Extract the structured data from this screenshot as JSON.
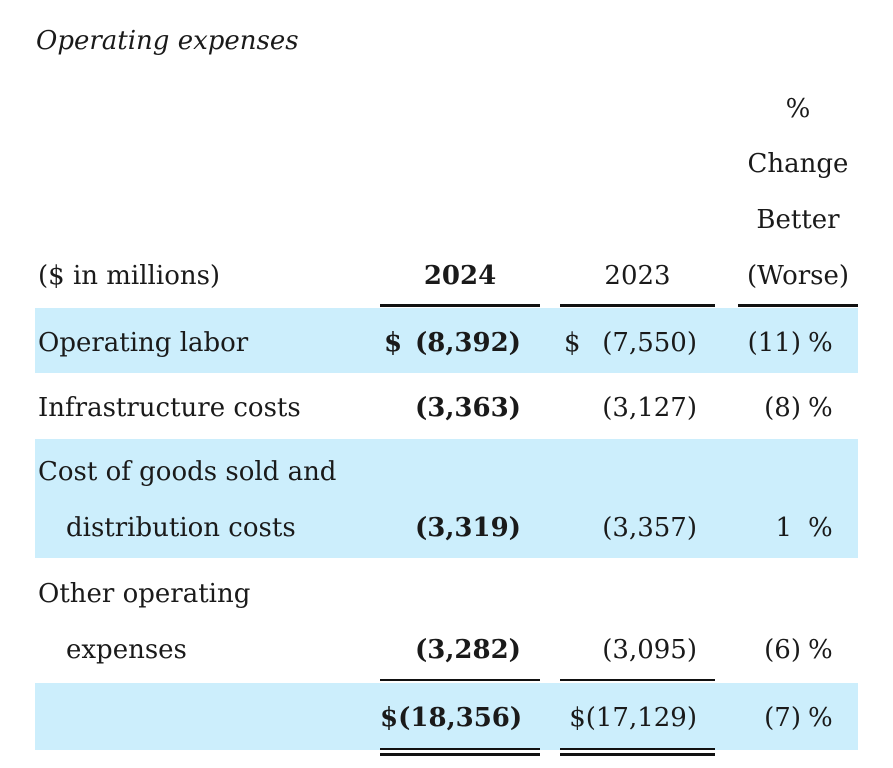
{
  "title": "Operating expenses",
  "header": {
    "units": "($ in millions)",
    "col_2024": "2024",
    "col_2023": "2023",
    "col_change": [
      "%",
      "Change",
      "Better",
      "(Worse)"
    ]
  },
  "rows": [
    {
      "label": [
        "Operating labor"
      ],
      "dollar_2024": "$",
      "v2024": "(8,392)",
      "dollar_2023": "$",
      "v2023": "(7,550)",
      "change": "(11)",
      "pct": "%"
    },
    {
      "label": [
        "Infrastructure costs"
      ],
      "v2024": "(3,363)",
      "v2023": "(3,127)",
      "change": "(8)",
      "pct": "%"
    },
    {
      "label": [
        "Cost of goods sold and",
        "distribution costs"
      ],
      "v2024": "(3,319)",
      "v2023": "(3,357)",
      "change": "1",
      "pct": "%"
    },
    {
      "label": [
        "Other operating",
        "expenses"
      ],
      "v2024": "(3,282)",
      "v2023": "(3,095)",
      "change": "(6)",
      "pct": "%"
    }
  ],
  "total": {
    "v2024": "$(18,356)",
    "v2023": "$(17,129)",
    "change": "(7)",
    "pct": "%"
  },
  "colors": {
    "band": "#cceefc",
    "text": "#1a1a1a"
  }
}
